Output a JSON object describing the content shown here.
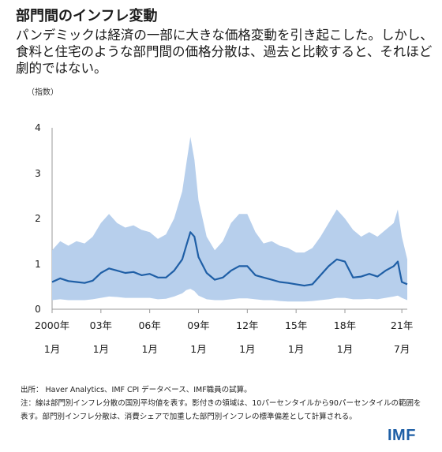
{
  "header": {
    "title": "部門間のインフレ変動",
    "subtitle": "パンデミックは経済の一部に大きな価格変動を引き起こした。しかし、食料と住宅のような部門間の価格分散は、過去と比較すると、それほど劇的ではない。",
    "unit": "（指数）"
  },
  "footer": {
    "source": "出所： Haver Analytics、IMF CPI データベース、IMF職員の試算。",
    "note": "注：線は部門別インフレ分散の国別平均値を表す。影付きの領域は、10パーセンタイルから90パーセンタイルの範囲を表す。部門別インフレ分散は、消費シェアで加重した部門別インフレの標準偏差として計算される。"
  },
  "logo": "IMF",
  "colors": {
    "line": "#1f5fa6",
    "band": "#b7cfec",
    "axis": "#999999"
  },
  "chart_data": {
    "type": "area",
    "x_range": [
      "2000-01",
      "2021-11"
    ],
    "ylim": [
      0,
      4
    ],
    "y_ticks": [
      "0",
      "1",
      "2",
      "3",
      "4"
    ],
    "x_ticks": [
      {
        "year": "2000年",
        "month": "1月",
        "x": "2000-01"
      },
      {
        "year": "03年",
        "month": "1月",
        "x": "2003-01"
      },
      {
        "year": "06年",
        "month": "1月",
        "x": "2006-01"
      },
      {
        "year": "09年",
        "month": "1月",
        "x": "2009-01"
      },
      {
        "year": "12年",
        "month": "1月",
        "x": "2012-01"
      },
      {
        "year": "15年",
        "month": "1月",
        "x": "2015-01"
      },
      {
        "year": "18年",
        "month": "1月",
        "x": "2018-01"
      },
      {
        "year": "21年",
        "month": "7月",
        "x": "2021-07"
      }
    ],
    "series": [
      {
        "role": "mean",
        "x": [
          "2000-01",
          "2000-07",
          "2001-01",
          "2001-07",
          "2002-01",
          "2002-07",
          "2003-01",
          "2003-07",
          "2004-01",
          "2004-07",
          "2005-01",
          "2005-07",
          "2006-01",
          "2006-07",
          "2007-01",
          "2007-07",
          "2008-01",
          "2008-04",
          "2008-07",
          "2008-10",
          "2009-01",
          "2009-07",
          "2010-01",
          "2010-07",
          "2011-01",
          "2011-07",
          "2012-01",
          "2012-07",
          "2013-01",
          "2013-07",
          "2014-01",
          "2014-07",
          "2015-01",
          "2015-07",
          "2016-01",
          "2016-07",
          "2017-01",
          "2017-07",
          "2018-01",
          "2018-07",
          "2019-01",
          "2019-07",
          "2020-01",
          "2020-07",
          "2021-01",
          "2021-04",
          "2021-07",
          "2021-11"
        ],
        "values": [
          0.6,
          0.68,
          0.62,
          0.6,
          0.58,
          0.63,
          0.8,
          0.9,
          0.85,
          0.8,
          0.82,
          0.75,
          0.78,
          0.7,
          0.7,
          0.85,
          1.1,
          1.4,
          1.7,
          1.6,
          1.15,
          0.8,
          0.65,
          0.7,
          0.85,
          0.95,
          0.95,
          0.75,
          0.7,
          0.65,
          0.6,
          0.58,
          0.55,
          0.52,
          0.55,
          0.75,
          0.95,
          1.1,
          1.05,
          0.7,
          0.72,
          0.78,
          0.72,
          0.85,
          0.95,
          1.05,
          0.6,
          0.55
        ]
      },
      {
        "role": "p90",
        "x": [
          "2000-01",
          "2000-07",
          "2001-01",
          "2001-07",
          "2002-01",
          "2002-07",
          "2003-01",
          "2003-07",
          "2004-01",
          "2004-07",
          "2005-01",
          "2005-07",
          "2006-01",
          "2006-07",
          "2007-01",
          "2007-07",
          "2008-01",
          "2008-04",
          "2008-07",
          "2008-10",
          "2009-01",
          "2009-07",
          "2010-01",
          "2010-07",
          "2011-01",
          "2011-07",
          "2012-01",
          "2012-07",
          "2013-01",
          "2013-07",
          "2014-01",
          "2014-07",
          "2015-01",
          "2015-07",
          "2016-01",
          "2016-07",
          "2017-01",
          "2017-07",
          "2018-01",
          "2018-07",
          "2019-01",
          "2019-07",
          "2020-01",
          "2020-07",
          "2021-01",
          "2021-04",
          "2021-07",
          "2021-11"
        ],
        "values": [
          1.3,
          1.5,
          1.4,
          1.5,
          1.45,
          1.6,
          1.9,
          2.1,
          1.9,
          1.8,
          1.85,
          1.75,
          1.7,
          1.55,
          1.65,
          2.0,
          2.6,
          3.2,
          3.8,
          3.3,
          2.4,
          1.6,
          1.3,
          1.5,
          1.9,
          2.1,
          2.1,
          1.7,
          1.45,
          1.5,
          1.4,
          1.35,
          1.25,
          1.25,
          1.35,
          1.6,
          1.9,
          2.2,
          2.0,
          1.75,
          1.6,
          1.7,
          1.6,
          1.75,
          1.9,
          2.2,
          1.6,
          1.1
        ]
      },
      {
        "role": "p10",
        "x": [
          "2000-01",
          "2000-07",
          "2001-01",
          "2001-07",
          "2002-01",
          "2002-07",
          "2003-01",
          "2003-07",
          "2004-01",
          "2004-07",
          "2005-01",
          "2005-07",
          "2006-01",
          "2006-07",
          "2007-01",
          "2007-07",
          "2008-01",
          "2008-04",
          "2008-07",
          "2008-10",
          "2009-01",
          "2009-07",
          "2010-01",
          "2010-07",
          "2011-01",
          "2011-07",
          "2012-01",
          "2012-07",
          "2013-01",
          "2013-07",
          "2014-01",
          "2014-07",
          "2015-01",
          "2015-07",
          "2016-01",
          "2016-07",
          "2017-01",
          "2017-07",
          "2018-01",
          "2018-07",
          "2019-01",
          "2019-07",
          "2020-01",
          "2020-07",
          "2021-01",
          "2021-04",
          "2021-07",
          "2021-11"
        ],
        "values": [
          0.2,
          0.22,
          0.2,
          0.2,
          0.2,
          0.22,
          0.25,
          0.28,
          0.27,
          0.25,
          0.25,
          0.25,
          0.25,
          0.22,
          0.23,
          0.28,
          0.35,
          0.42,
          0.45,
          0.4,
          0.3,
          0.22,
          0.2,
          0.2,
          0.22,
          0.24,
          0.24,
          0.22,
          0.2,
          0.2,
          0.18,
          0.17,
          0.17,
          0.17,
          0.18,
          0.2,
          0.22,
          0.25,
          0.25,
          0.22,
          0.22,
          0.23,
          0.22,
          0.25,
          0.28,
          0.3,
          0.25,
          0.2
        ]
      }
    ]
  }
}
